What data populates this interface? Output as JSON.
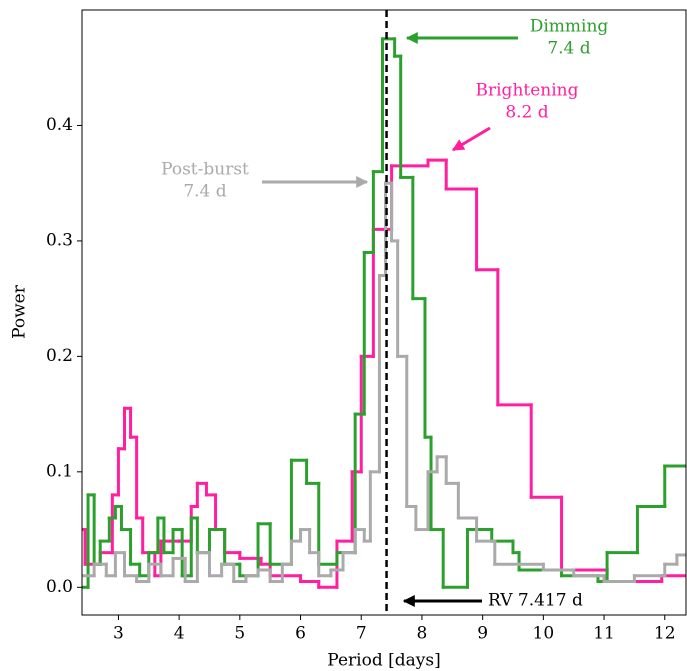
{
  "chart_data": {
    "type": "step",
    "xlabel": "Period [days]",
    "ylabel": "Power",
    "xlim": [
      2.4,
      12.35
    ],
    "ylim": [
      -0.024,
      0.5
    ],
    "xticks": [
      3,
      4,
      5,
      6,
      7,
      8,
      9,
      10,
      11,
      12
    ],
    "yticks": [
      {
        "value": 0,
        "label": "0.0"
      },
      0.1,
      0.2,
      0.3,
      0.4
    ],
    "vline": 7.417,
    "series": [
      {
        "color": "#ff1f9f",
        "x": [
          2.4,
          2.45,
          2.7,
          2.9,
          3.0,
          3.1,
          3.2,
          3.3,
          3.4,
          3.6,
          3.7,
          4.0,
          4.2,
          4.3,
          4.45,
          4.6,
          4.75,
          5.0,
          5.35,
          5.5,
          6.0,
          6.3,
          6.6,
          6.85,
          7.0,
          7.2,
          7.5,
          8.1,
          8.4,
          8.9,
          9.25,
          9.8,
          10.3,
          11.05,
          11.95
        ],
        "values": [
          0.05,
          0.02,
          0.03,
          0.08,
          0.12,
          0.155,
          0.13,
          0.06,
          0.03,
          0.01,
          0.04,
          0.04,
          0.07,
          0.09,
          0.08,
          0.05,
          0.03,
          0.025,
          0.02,
          0.01,
          0.005,
          0.0,
          0.04,
          0.1,
          0.2,
          0.31,
          0.365,
          0.37,
          0.345,
          0.275,
          0.158,
          0.078,
          0.015,
          0.005,
          0.01
        ]
      },
      {
        "color": "#2ca02c",
        "x": [
          2.4,
          2.5,
          2.6,
          2.7,
          2.85,
          2.95,
          3.05,
          3.2,
          3.35,
          3.5,
          3.65,
          3.75,
          3.9,
          4.05,
          4.2,
          4.3,
          4.5,
          4.75,
          5.0,
          5.3,
          5.5,
          5.85,
          6.1,
          6.3,
          6.6,
          6.9,
          7.05,
          7.2,
          7.35,
          7.55,
          7.65,
          7.85,
          8.05,
          8.15,
          8.35,
          8.75,
          9.15,
          9.5,
          9.6,
          10.3,
          10.9,
          11.05,
          11.55,
          12.0
        ],
        "values": [
          0.0,
          0.08,
          0.02,
          0.04,
          0.06,
          0.07,
          0.05,
          0.02,
          0.01,
          0.03,
          0.06,
          0.03,
          0.05,
          0.01,
          0.06,
          0.03,
          0.05,
          0.02,
          0.01,
          0.055,
          0.02,
          0.11,
          0.09,
          0.02,
          0.03,
          0.15,
          0.29,
          0.36,
          0.475,
          0.46,
          0.355,
          0.25,
          0.13,
          0.05,
          0.0,
          0.05,
          0.04,
          0.03,
          0.015,
          0.01,
          0.005,
          0.03,
          0.07,
          0.105
        ]
      },
      {
        "color": "#aaaaaa",
        "x": [
          2.4,
          2.6,
          2.8,
          2.95,
          3.1,
          3.3,
          3.5,
          3.7,
          3.9,
          4.1,
          4.3,
          4.5,
          4.7,
          4.9,
          5.1,
          5.3,
          5.5,
          5.7,
          5.85,
          6.0,
          6.15,
          6.3,
          6.5,
          6.7,
          6.9,
          7.05,
          7.15,
          7.3,
          7.4,
          7.5,
          7.6,
          7.75,
          7.9,
          8.1,
          8.25,
          8.4,
          8.6,
          8.9,
          9.2,
          9.6,
          10.0,
          10.5,
          11.0,
          11.5,
          12.0,
          12.2
        ],
        "values": [
          0.01,
          0.02,
          0.01,
          0.03,
          0.01,
          0.005,
          0.02,
          0.01,
          0.025,
          0.005,
          0.03,
          0.01,
          0.02,
          0.005,
          0.01,
          0.015,
          0.005,
          0.02,
          0.04,
          0.05,
          0.03,
          0.01,
          0.015,
          0.03,
          0.05,
          0.04,
          0.1,
          0.27,
          0.35,
          0.3,
          0.2,
          0.07,
          0.05,
          0.1,
          0.113,
          0.09,
          0.06,
          0.04,
          0.02,
          0.02,
          0.015,
          0.01,
          0.005,
          0.01,
          0.02,
          0.028
        ]
      }
    ],
    "annotations": [
      {
        "lines": [
          "Dimming",
          "7.4 d"
        ],
        "series": 1
      },
      {
        "lines": [
          "Brightening",
          "8.2 d"
        ],
        "series": 0
      },
      {
        "lines": [
          "Post-burst",
          "7.4 d"
        ],
        "series": 2
      },
      {
        "lines": [
          "RV 7.417 d"
        ]
      }
    ]
  }
}
